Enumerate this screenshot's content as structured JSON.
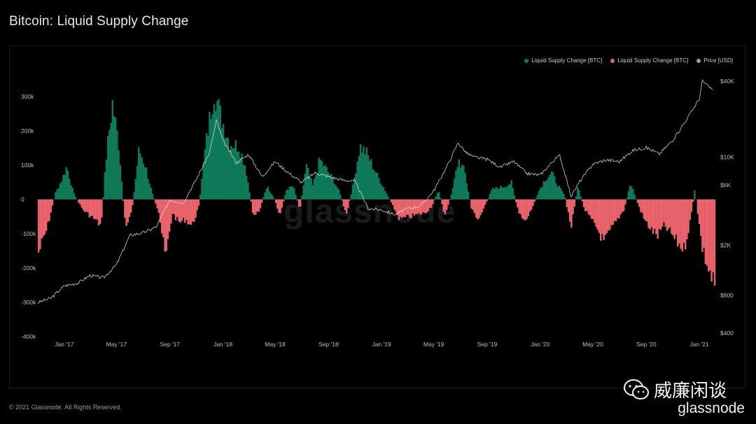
{
  "page": {
    "title": "Bitcoin: Liquid Supply Change",
    "copyright": "© 2021 Glassnode. All Rights Reserved.",
    "watermark": "glassnode",
    "wechat_text": "威廉闲谈",
    "brand": "glassnode"
  },
  "colors": {
    "positive": "#0f7a5a",
    "negative": "#e8636b",
    "price": "#d9d9d9",
    "background": "#000000"
  },
  "legend": [
    {
      "label": "Liquid Supply Change [BTC]",
      "color": "#0f7a5a"
    },
    {
      "label": "Liquid Supply Change [BTC]",
      "color": "#e8636b"
    },
    {
      "label": "Price [USD]",
      "color": "#9a9a9a"
    }
  ],
  "chart_data": {
    "type": "bar",
    "title": "Bitcoin: Liquid Supply Change",
    "x_ticks": [
      "Jan '17",
      "May '17",
      "Sep '17",
      "Jan '18",
      "May '18",
      "Sep '18",
      "Jan '19",
      "May '19",
      "Sep '19",
      "Jan '20",
      "May '20",
      "Sep '20",
      "Jan '21"
    ],
    "y_left_ticks": [
      "300k",
      "200k",
      "100k",
      "0",
      "-100k",
      "-200k",
      "-300k",
      "-400k"
    ],
    "y_left_range": [
      -400000,
      300000
    ],
    "y_right_ticks": [
      "$40K",
      "$10K",
      "$6K",
      "$2K",
      "$800",
      "$400"
    ],
    "y_right_scale": "log",
    "x_range": [
      "2016-11-01",
      "2021-02-15"
    ],
    "series": [
      {
        "name": "Liquid Supply Change [BTC]",
        "kind": "bar",
        "points": [
          [
            "2016-11-01",
            -160000
          ],
          [
            "2016-11-20",
            -90000
          ],
          [
            "2016-12-10",
            20000
          ],
          [
            "2016-12-25",
            60000
          ],
          [
            "2017-01-05",
            100000
          ],
          [
            "2017-01-20",
            20000
          ],
          [
            "2017-02-10",
            -30000
          ],
          [
            "2017-03-10",
            -60000
          ],
          [
            "2017-03-25",
            -80000
          ],
          [
            "2017-04-05",
            120000
          ],
          [
            "2017-04-20",
            290000
          ],
          [
            "2017-05-05",
            160000
          ],
          [
            "2017-05-20",
            -90000
          ],
          [
            "2017-06-05",
            -20000
          ],
          [
            "2017-06-20",
            150000
          ],
          [
            "2017-07-05",
            100000
          ],
          [
            "2017-07-20",
            20000
          ],
          [
            "2017-08-05",
            -40000
          ],
          [
            "2017-08-20",
            -180000
          ],
          [
            "2017-09-05",
            -40000
          ],
          [
            "2017-09-20",
            -70000
          ],
          [
            "2017-10-05",
            -60000
          ],
          [
            "2017-10-20",
            -80000
          ],
          [
            "2017-11-05",
            -20000
          ],
          [
            "2017-11-20",
            160000
          ],
          [
            "2017-12-10",
            330000
          ],
          [
            "2017-12-25",
            250000
          ],
          [
            "2018-01-15",
            170000
          ],
          [
            "2018-02-05",
            160000
          ],
          [
            "2018-02-20",
            100000
          ],
          [
            "2018-03-10",
            -50000
          ],
          [
            "2018-03-25",
            -30000
          ],
          [
            "2018-04-10",
            40000
          ],
          [
            "2018-04-25",
            10000
          ],
          [
            "2018-05-10",
            -50000
          ],
          [
            "2018-05-25",
            30000
          ],
          [
            "2018-06-10",
            40000
          ],
          [
            "2018-06-25",
            -30000
          ],
          [
            "2018-07-10",
            100000
          ],
          [
            "2018-07-25",
            40000
          ],
          [
            "2018-08-10",
            120000
          ],
          [
            "2018-08-25",
            90000
          ],
          [
            "2018-09-10",
            60000
          ],
          [
            "2018-09-25",
            20000
          ],
          [
            "2018-10-10",
            -50000
          ],
          [
            "2018-10-25",
            40000
          ],
          [
            "2018-11-10",
            160000
          ],
          [
            "2018-11-25",
            140000
          ],
          [
            "2018-12-10",
            100000
          ],
          [
            "2018-12-25",
            60000
          ],
          [
            "2019-01-10",
            20000
          ],
          [
            "2019-01-25",
            -20000
          ],
          [
            "2019-02-10",
            -60000
          ],
          [
            "2019-03-10",
            -50000
          ],
          [
            "2019-04-10",
            -40000
          ],
          [
            "2019-04-25",
            -20000
          ],
          [
            "2019-05-10",
            30000
          ],
          [
            "2019-05-25",
            -50000
          ],
          [
            "2019-06-10",
            20000
          ],
          [
            "2019-06-25",
            120000
          ],
          [
            "2019-07-10",
            80000
          ],
          [
            "2019-07-25",
            -30000
          ],
          [
            "2019-08-10",
            -60000
          ],
          [
            "2019-08-25",
            -20000
          ],
          [
            "2019-09-10",
            30000
          ],
          [
            "2019-10-10",
            40000
          ],
          [
            "2019-10-25",
            50000
          ],
          [
            "2019-11-10",
            -40000
          ],
          [
            "2019-11-25",
            -70000
          ],
          [
            "2019-12-10",
            -30000
          ],
          [
            "2019-12-25",
            20000
          ],
          [
            "2020-01-10",
            60000
          ],
          [
            "2020-01-25",
            80000
          ],
          [
            "2020-02-10",
            40000
          ],
          [
            "2020-02-25",
            10000
          ],
          [
            "2020-03-10",
            -90000
          ],
          [
            "2020-03-25",
            40000
          ],
          [
            "2020-04-10",
            -30000
          ],
          [
            "2020-04-25",
            -60000
          ],
          [
            "2020-05-10",
            -90000
          ],
          [
            "2020-05-25",
            -130000
          ],
          [
            "2020-06-10",
            -90000
          ],
          [
            "2020-06-25",
            -60000
          ],
          [
            "2020-07-10",
            -30000
          ],
          [
            "2020-07-25",
            50000
          ],
          [
            "2020-08-10",
            -10000
          ],
          [
            "2020-08-25",
            -60000
          ],
          [
            "2020-09-10",
            -90000
          ],
          [
            "2020-09-25",
            -110000
          ],
          [
            "2020-10-10",
            -80000
          ],
          [
            "2020-10-25",
            -100000
          ],
          [
            "2020-11-10",
            -130000
          ],
          [
            "2020-11-25",
            -150000
          ],
          [
            "2020-12-10",
            -60000
          ],
          [
            "2020-12-20",
            30000
          ],
          [
            "2021-01-05",
            -140000
          ],
          [
            "2021-01-20",
            -210000
          ],
          [
            "2021-02-05",
            -270000
          ]
        ]
      },
      {
        "name": "Price [USD]",
        "kind": "line",
        "points": [
          [
            "2016-11-01",
            700
          ],
          [
            "2016-12-01",
            760
          ],
          [
            "2017-01-01",
            950
          ],
          [
            "2017-02-01",
            1000
          ],
          [
            "2017-03-01",
            1150
          ],
          [
            "2017-04-01",
            1100
          ],
          [
            "2017-05-01",
            1400
          ],
          [
            "2017-06-01",
            2400
          ],
          [
            "2017-07-01",
            2500
          ],
          [
            "2017-08-01",
            2800
          ],
          [
            "2017-09-01",
            4600
          ],
          [
            "2017-10-01",
            4300
          ],
          [
            "2017-11-01",
            6700
          ],
          [
            "2017-12-01",
            10800
          ],
          [
            "2017-12-17",
            19500
          ],
          [
            "2018-01-01",
            13500
          ],
          [
            "2018-02-01",
            9000
          ],
          [
            "2018-03-01",
            10500
          ],
          [
            "2018-04-01",
            7000
          ],
          [
            "2018-05-01",
            9200
          ],
          [
            "2018-06-01",
            7500
          ],
          [
            "2018-07-01",
            6300
          ],
          [
            "2018-08-01",
            7500
          ],
          [
            "2018-09-01",
            7000
          ],
          [
            "2018-10-01",
            6600
          ],
          [
            "2018-11-01",
            6400
          ],
          [
            "2018-12-01",
            3900
          ],
          [
            "2019-01-01",
            3800
          ],
          [
            "2019-02-01",
            3500
          ],
          [
            "2019-03-01",
            3900
          ],
          [
            "2019-04-01",
            4100
          ],
          [
            "2019-05-01",
            5400
          ],
          [
            "2019-06-01",
            8500
          ],
          [
            "2019-06-26",
            13000
          ],
          [
            "2019-07-15",
            10800
          ],
          [
            "2019-08-01",
            10000
          ],
          [
            "2019-09-01",
            9600
          ],
          [
            "2019-10-01",
            8300
          ],
          [
            "2019-11-01",
            9200
          ],
          [
            "2019-12-01",
            7400
          ],
          [
            "2020-01-01",
            7200
          ],
          [
            "2020-02-01",
            9400
          ],
          [
            "2020-02-15",
            10300
          ],
          [
            "2020-03-12",
            4900
          ],
          [
            "2020-04-01",
            6400
          ],
          [
            "2020-05-01",
            8800
          ],
          [
            "2020-06-01",
            9500
          ],
          [
            "2020-07-01",
            9200
          ],
          [
            "2020-08-01",
            11300
          ],
          [
            "2020-09-01",
            11900
          ],
          [
            "2020-10-01",
            10600
          ],
          [
            "2020-11-01",
            13600
          ],
          [
            "2020-12-01",
            19500
          ],
          [
            "2021-01-01",
            29000
          ],
          [
            "2021-01-08",
            40000
          ],
          [
            "2021-02-01",
            34000
          ]
        ]
      }
    ]
  }
}
